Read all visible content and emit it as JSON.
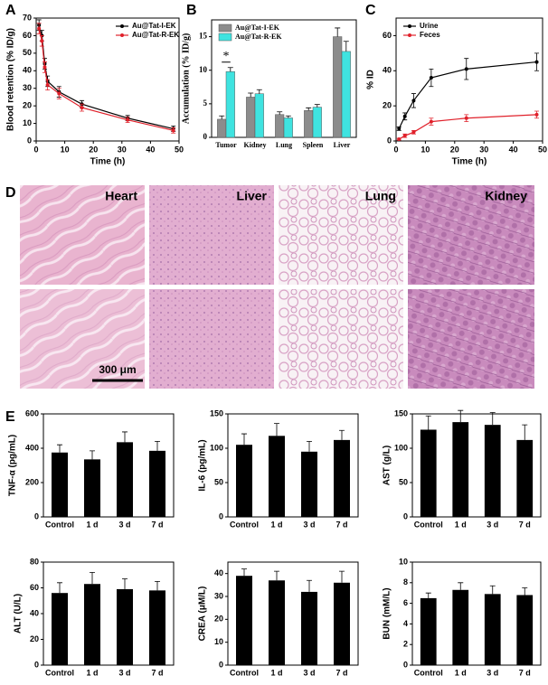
{
  "panel_labels": [
    "A",
    "B",
    "C",
    "D",
    "E"
  ],
  "histology": {
    "tissues": [
      "Heart",
      "Liver",
      "Lung",
      "Kidney"
    ],
    "scale_bar": "300 μm"
  },
  "chart_data": [
    {
      "type": "line",
      "xlabel": "Time (h)",
      "ylabel": "Blood retention (% ID/g)",
      "xlim": [
        0,
        50
      ],
      "xticks": [
        0,
        10,
        20,
        30,
        40,
        50
      ],
      "ylim": [
        0,
        70
      ],
      "yticks": [
        0,
        10,
        20,
        30,
        40,
        50,
        60,
        70
      ],
      "legend": "upper right",
      "series": [
        {
          "name": "Au@Tat-I-EK",
          "color": "#000000",
          "x": [
            1,
            2,
            3,
            4,
            8,
            16,
            32,
            48
          ],
          "values": [
            66,
            60,
            44,
            34,
            28,
            21,
            13,
            7
          ],
          "errors": [
            3,
            3,
            3,
            3,
            3,
            2,
            1.5,
            1.5
          ]
        },
        {
          "name": "Au@Tat-R-EK",
          "color": "#e0202a",
          "x": [
            1,
            2,
            3,
            4,
            8,
            16,
            32,
            48
          ],
          "values": [
            64,
            57,
            42,
            32,
            27,
            19,
            12,
            6
          ],
          "errors": [
            3,
            3,
            3,
            3,
            3,
            2,
            1.5,
            1.5
          ]
        }
      ]
    },
    {
      "type": "bar",
      "ylabel": "Accumulation (% ID/g)",
      "categories": [
        "Tumor",
        "Kidney",
        "Lung",
        "Spleen",
        "Liver"
      ],
      "ylim": [
        0,
        17.5
      ],
      "yticks": [
        0,
        5,
        10,
        15
      ],
      "legend": "upper left",
      "annotation": "*",
      "series": [
        {
          "name": "Au@Tat-I-EK",
          "color": "#8c8c8c",
          "values": [
            2.7,
            6.0,
            3.4,
            4.0,
            15.0
          ],
          "errors": [
            0.5,
            0.6,
            0.4,
            0.4,
            1.3
          ]
        },
        {
          "name": "Au@Tat-R-EK",
          "color": "#3fe3e0",
          "values": [
            9.8,
            6.5,
            2.9,
            4.5,
            12.8
          ],
          "errors": [
            0.6,
            0.6,
            0.3,
            0.4,
            1.5
          ]
        }
      ]
    },
    {
      "type": "line",
      "xlabel": "Time (h)",
      "ylabel": "% ID",
      "xlim": [
        0,
        50
      ],
      "xticks": [
        0,
        10,
        20,
        30,
        40,
        50
      ],
      "ylim": [
        0,
        70
      ],
      "yticks": [
        0,
        20,
        40,
        60
      ],
      "legend": "upper left",
      "series": [
        {
          "name": "Urine",
          "color": "#000000",
          "x": [
            1,
            3,
            6,
            12,
            24,
            48
          ],
          "values": [
            7,
            14,
            23,
            36,
            41,
            45
          ],
          "errors": [
            1,
            2,
            4,
            5,
            6,
            5
          ]
        },
        {
          "name": "Feces",
          "color": "#e0202a",
          "x": [
            1,
            3,
            6,
            12,
            24,
            48
          ],
          "values": [
            1,
            3,
            5,
            11,
            13,
            15
          ],
          "errors": [
            0.5,
            1,
            1,
            2,
            2,
            2
          ]
        }
      ]
    },
    {
      "type": "bar",
      "ylabel": "TNF-α (pg/mL)",
      "categories": [
        "Control",
        "1 d",
        "3 d",
        "7 d"
      ],
      "color": "#000000",
      "ylim": [
        0,
        600
      ],
      "yticks": [
        0,
        200,
        400,
        600
      ],
      "values": [
        375,
        335,
        435,
        385
      ],
      "errors": [
        45,
        50,
        60,
        55
      ]
    },
    {
      "type": "bar",
      "ylabel": "IL-6 (pg/mL)",
      "categories": [
        "Control",
        "1 d",
        "3 d",
        "7 d"
      ],
      "color": "#000000",
      "ylim": [
        0,
        150
      ],
      "yticks": [
        0,
        50,
        100,
        150
      ],
      "values": [
        105,
        118,
        95,
        112
      ],
      "errors": [
        16,
        18,
        15,
        14
      ]
    },
    {
      "type": "bar",
      "ylabel": "AST (g/L)",
      "categories": [
        "Control",
        "1 d",
        "3 d",
        "7 d"
      ],
      "color": "#000000",
      "ylim": [
        0,
        150
      ],
      "yticks": [
        0,
        50,
        100,
        150
      ],
      "values": [
        127,
        138,
        134,
        112
      ],
      "errors": [
        20,
        17,
        18,
        22
      ]
    },
    {
      "type": "bar",
      "ylabel": "ALT (U/L)",
      "categories": [
        "Control",
        "1 d",
        "3 d",
        "7 d"
      ],
      "color": "#000000",
      "ylim": [
        0,
        80
      ],
      "yticks": [
        0,
        20,
        40,
        60,
        80
      ],
      "values": [
        56,
        63,
        59,
        58
      ],
      "errors": [
        8,
        9,
        8,
        7
      ]
    },
    {
      "type": "bar",
      "ylabel": "CREA (μM/L)",
      "categories": [
        "Control",
        "1 d",
        "3 d",
        "7 d"
      ],
      "color": "#000000",
      "ylim": [
        0,
        45
      ],
      "yticks": [
        0,
        10,
        20,
        30,
        40
      ],
      "values": [
        39,
        37,
        32,
        36
      ],
      "errors": [
        3,
        4,
        5,
        5
      ]
    },
    {
      "type": "bar",
      "ylabel": "BUN (mM/L)",
      "categories": [
        "Control",
        "1 d",
        "3 d",
        "7 d"
      ],
      "color": "#000000",
      "ylim": [
        0,
        10
      ],
      "yticks": [
        0,
        2,
        4,
        6,
        8,
        10
      ],
      "values": [
        6.5,
        7.3,
        6.9,
        6.8
      ],
      "errors": [
        0.5,
        0.7,
        0.8,
        0.7
      ]
    }
  ]
}
